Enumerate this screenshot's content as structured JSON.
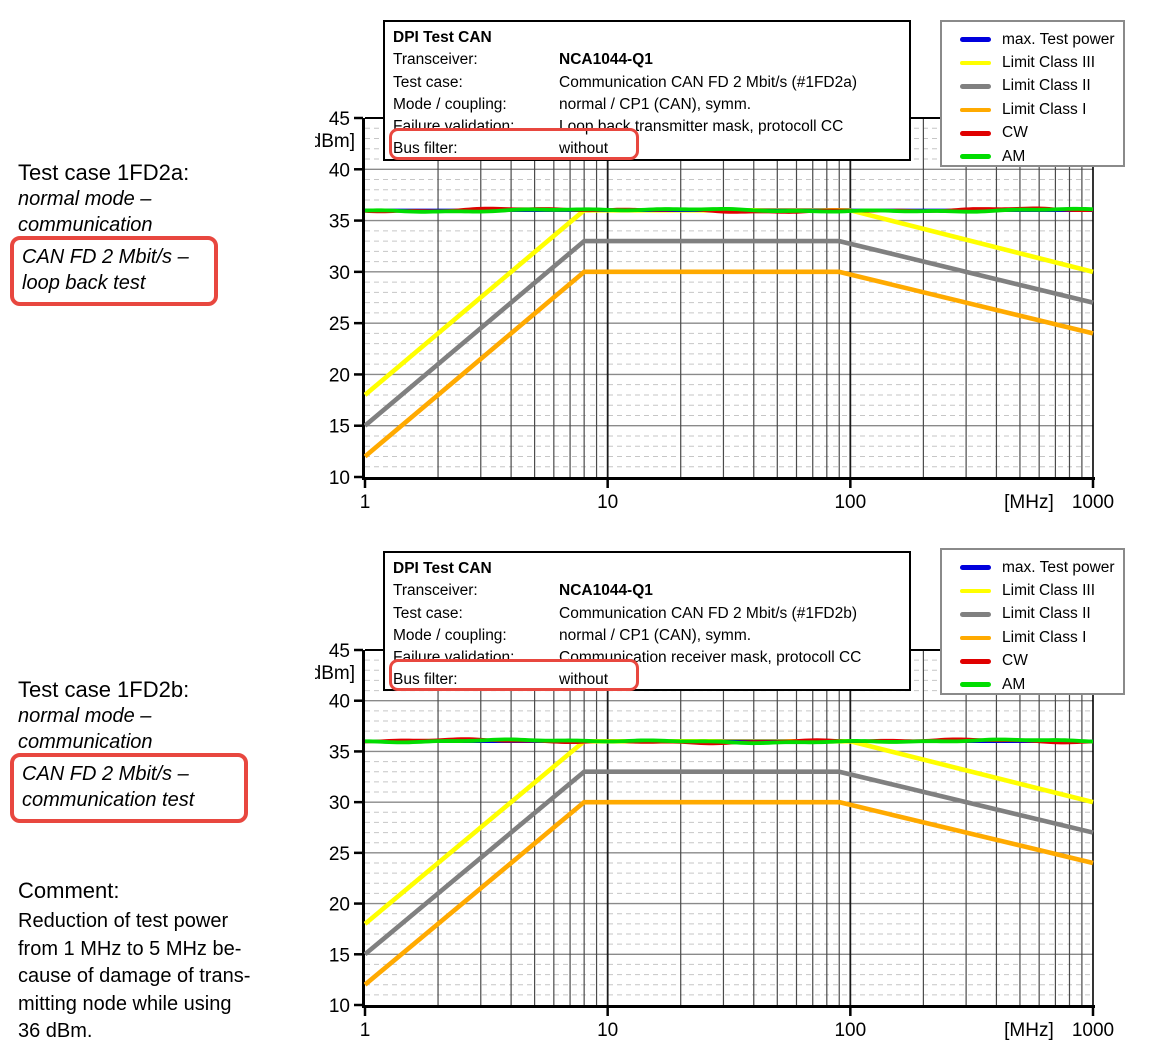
{
  "colors": {
    "highlight_red": "#e8473f",
    "max_test_power": "#0000dd",
    "limit_class_iii": "#ffff00",
    "limit_class_ii": "#808080",
    "limit_class_i": "#ffaa00",
    "cw": "#e00000",
    "am": "#00dd00"
  },
  "left_panel": {
    "block_a": {
      "title": "Test case 1FD2a:",
      "line1": "normal mode –",
      "line2": "communication",
      "boxed_line1": "CAN FD 2 Mbit/s –",
      "boxed_line2": "loop back test"
    },
    "block_b": {
      "title": "Test case 1FD2b:",
      "line1": "normal mode –",
      "line2": "communication",
      "boxed_line1": "CAN FD 2 Mbit/s –",
      "boxed_line2": "communication test"
    },
    "comment": {
      "title": "Comment:",
      "lines": [
        "Reduction of test power",
        "from 1 MHz to 5 MHz be-",
        "cause of damage of trans-",
        "mitting node while using",
        "36 dBm."
      ]
    }
  },
  "charts": [
    {
      "info_box": {
        "title": "DPI Test CAN",
        "rows": [
          {
            "label": "Transceiver:",
            "value": "NCA1044-Q1"
          },
          {
            "label": "Test case:",
            "value": "Communication CAN FD 2 Mbit/s (#1FD2a)"
          },
          {
            "label": "Mode / coupling:",
            "value": "normal / CP1 (CAN), symm."
          },
          {
            "label": "Failure validation:",
            "value": "Loop back transmitter mask, protocoll CC"
          },
          {
            "label": "Bus filter:",
            "value": "without"
          }
        ]
      },
      "legend": [
        {
          "label": "max. Test power",
          "color": "#0000dd"
        },
        {
          "label": "Limit Class III",
          "color": "#ffff00"
        },
        {
          "label": "Limit Class II",
          "color": "#808080"
        },
        {
          "label": "Limit Class I",
          "color": "#ffaa00"
        },
        {
          "label": "CW",
          "color": "#e00000"
        },
        {
          "label": "AM",
          "color": "#00dd00"
        }
      ]
    },
    {
      "info_box": {
        "title": "DPI Test CAN",
        "rows": [
          {
            "label": "Transceiver:",
            "value": "NCA1044-Q1"
          },
          {
            "label": "Test case:",
            "value": "Communication CAN FD 2 Mbit/s (#1FD2b)"
          },
          {
            "label": "Mode / coupling:",
            "value": "normal / CP1 (CAN), symm."
          },
          {
            "label": "Failure validation:",
            "value": "Communication receiver mask, protocoll CC"
          },
          {
            "label": "Bus filter:",
            "value": "without"
          }
        ]
      },
      "legend": [
        {
          "label": "max. Test power",
          "color": "#0000dd"
        },
        {
          "label": "Limit Class III",
          "color": "#ffff00"
        },
        {
          "label": "Limit Class II",
          "color": "#808080"
        },
        {
          "label": "Limit Class I",
          "color": "#ffaa00"
        },
        {
          "label": "CW",
          "color": "#e00000"
        },
        {
          "label": "AM",
          "color": "#00dd00"
        }
      ]
    }
  ],
  "chart_data": [
    {
      "type": "line",
      "title": "DPI Test CAN #1FD2a",
      "grid": true,
      "legend_position": "top-right",
      "x_axis": {
        "scale": "log",
        "min": 1,
        "max": 1000,
        "ticks": [
          1,
          10,
          100,
          1000
        ],
        "unit": "[MHz]"
      },
      "y_axis": {
        "min": 10,
        "max": 45,
        "tick_step": 5,
        "minor_step": 1,
        "unit": "[dBm]"
      },
      "series": [
        {
          "name": "Limit Class I",
          "color": "#ffaa00",
          "points": [
            [
              1,
              12
            ],
            [
              8,
              30
            ],
            [
              90,
              30
            ],
            [
              1000,
              24
            ]
          ]
        },
        {
          "name": "Limit Class II",
          "color": "#808080",
          "points": [
            [
              1,
              15
            ],
            [
              8,
              33
            ],
            [
              90,
              33
            ],
            [
              1000,
              27
            ]
          ]
        },
        {
          "name": "Limit Class III",
          "color": "#ffff00",
          "points": [
            [
              1,
              18
            ],
            [
              8,
              36
            ],
            [
              100,
              36
            ],
            [
              1000,
              30
            ]
          ]
        },
        {
          "name": "max. Test power",
          "color": "#0000dd",
          "points": [
            [
              1,
              36
            ],
            [
              1000,
              36
            ]
          ]
        },
        {
          "name": "CW",
          "color": "#e00000",
          "points": [
            [
              1,
              36
            ],
            [
              1000,
              36
            ]
          ],
          "noisy": true
        },
        {
          "name": "AM",
          "color": "#00dd00",
          "points": [
            [
              1,
              36
            ],
            [
              1000,
              36
            ]
          ],
          "noisy": true
        }
      ]
    },
    {
      "type": "line",
      "title": "DPI Test CAN #1FD2b",
      "grid": true,
      "legend_position": "top-right",
      "x_axis": {
        "scale": "log",
        "min": 1,
        "max": 1000,
        "ticks": [
          1,
          10,
          100,
          1000
        ],
        "unit": "[MHz]"
      },
      "y_axis": {
        "min": 10,
        "max": 45,
        "tick_step": 5,
        "minor_step": 1,
        "unit": "[dBm]"
      },
      "series": [
        {
          "name": "Limit Class I",
          "color": "#ffaa00",
          "points": [
            [
              1,
              12
            ],
            [
              8,
              30
            ],
            [
              90,
              30
            ],
            [
              1000,
              24
            ]
          ]
        },
        {
          "name": "Limit Class II",
          "color": "#808080",
          "points": [
            [
              1,
              15
            ],
            [
              8,
              33
            ],
            [
              90,
              33
            ],
            [
              1000,
              27
            ]
          ]
        },
        {
          "name": "Limit Class III",
          "color": "#ffff00",
          "points": [
            [
              1,
              18
            ],
            [
              8,
              36
            ],
            [
              100,
              36
            ],
            [
              1000,
              30
            ]
          ]
        },
        {
          "name": "max. Test power",
          "color": "#0000dd",
          "points": [
            [
              1,
              36
            ],
            [
              1000,
              36
            ]
          ]
        },
        {
          "name": "CW",
          "color": "#e00000",
          "points": [
            [
              1,
              36
            ],
            [
              1000,
              36
            ]
          ],
          "noisy": true
        },
        {
          "name": "AM",
          "color": "#00dd00",
          "points": [
            [
              1,
              36
            ],
            [
              1000,
              36
            ]
          ],
          "noisy": true
        }
      ]
    }
  ]
}
